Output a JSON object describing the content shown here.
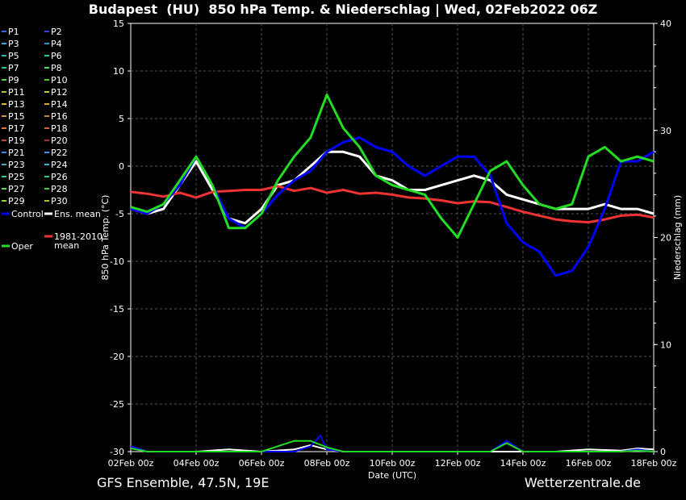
{
  "title": "Budapest  (HU)  850 hPa Temp. & Niederschlag | Wed, 02Feb2022 06Z",
  "footer_left": "GFS Ensemble, 47.5N, 19E",
  "footer_right": "Wetterzentrale.de",
  "chart_data": {
    "type": "line",
    "title": "Budapest  (HU)  850 hPa Temp. & Niederschlag | Wed, 02Feb2022 06Z",
    "xlabel": "Date (UTC)",
    "ylabel": "850 hPa Temp. (°C)",
    "y2label": "Niederschlag (mm)",
    "ylim": [
      -30,
      15
    ],
    "y2lim": [
      0,
      40
    ],
    "yticks": [
      "15",
      "10",
      "5",
      "0",
      "-5",
      "-10",
      "-15",
      "-20",
      "-25",
      "-30"
    ],
    "y2ticks": [
      "40",
      "30",
      "20",
      "10",
      "0"
    ],
    "xlim_days": [
      0,
      16
    ],
    "xticks": [
      "02Feb 00z",
      "04Feb 00z",
      "06Feb 00z",
      "08Feb 00z",
      "10Feb 00z",
      "12Feb 00z",
      "14Feb 00z",
      "16Feb 00z",
      "18Feb 00z"
    ],
    "grid": true,
    "legend_position": "left outside",
    "legend": [
      {
        "name": "P1",
        "color": "#3366ff"
      },
      {
        "name": "P2",
        "color": "#3344dd"
      },
      {
        "name": "P3",
        "color": "#33aadd"
      },
      {
        "name": "P4",
        "color": "#2299cc"
      },
      {
        "name": "P5",
        "color": "#22bbbb"
      },
      {
        "name": "P6",
        "color": "#22cc99"
      },
      {
        "name": "P7",
        "color": "#22cc88"
      },
      {
        "name": "P8",
        "color": "#44dd66"
      },
      {
        "name": "P9",
        "color": "#44dd44"
      },
      {
        "name": "P10",
        "color": "#55cc22"
      },
      {
        "name": "P11",
        "color": "#aacc22"
      },
      {
        "name": "P12",
        "color": "#cccc22"
      },
      {
        "name": "P13",
        "color": "#ddbb22"
      },
      {
        "name": "P14",
        "color": "#ddaa22"
      },
      {
        "name": "P15",
        "color": "#dd9933"
      },
      {
        "name": "P16",
        "color": "#cc8833"
      },
      {
        "name": "P17",
        "color": "#dd7733"
      },
      {
        "name": "P18",
        "color": "#cc6633"
      },
      {
        "name": "P19",
        "color": "#cc4433"
      },
      {
        "name": "P20",
        "color": "#aa3333"
      },
      {
        "name": "P21",
        "color": "#3388ff"
      },
      {
        "name": "P22",
        "color": "#3399ee"
      },
      {
        "name": "P23",
        "color": "#44aacc"
      },
      {
        "name": "P24",
        "color": "#33bbcc"
      },
      {
        "name": "P25",
        "color": "#33cc99"
      },
      {
        "name": "P26",
        "color": "#33cc77"
      },
      {
        "name": "P27",
        "color": "#55dd55"
      },
      {
        "name": "P28",
        "color": "#44cc44"
      },
      {
        "name": "P29",
        "color": "#88dd22"
      },
      {
        "name": "P30",
        "color": "#bbbb22"
      },
      {
        "name": "Control",
        "color": "#0000ff"
      },
      {
        "name": "Ens. mean",
        "color": "#ffffff"
      },
      {
        "name": "1981-2010\nmean",
        "color": "#ee3333"
      },
      {
        "name": "Oper",
        "color": "#22dd22"
      }
    ],
    "series": [
      {
        "name": "Ens. mean",
        "color": "#ffffff",
        "width": 3,
        "x": [
          0,
          0.5,
          1,
          1.5,
          2,
          2.5,
          3,
          3.5,
          4,
          4.5,
          5,
          5.5,
          6,
          6.5,
          7,
          7.5,
          8,
          8.5,
          9,
          9.5,
          10,
          10.5,
          11,
          11.5,
          12,
          12.5,
          13,
          13.5,
          14,
          14.5,
          15,
          15.5,
          16
        ],
        "y": [
          -4.5,
          -5,
          -4.5,
          -2,
          0.5,
          -2.5,
          -5.5,
          -6,
          -4.5,
          -2,
          -1.5,
          0,
          1.5,
          1.5,
          1,
          -1,
          -1.5,
          -2.5,
          -2.5,
          -2,
          -1.5,
          -1,
          -1.5,
          -3,
          -3.5,
          -4,
          -4.5,
          -4.5,
          -4.5,
          -4,
          -4.5,
          -4.5,
          -5
        ]
      },
      {
        "name": "1981-2010 mean",
        "color": "#ee3333",
        "width": 3,
        "x": [
          0,
          0.5,
          1,
          1.5,
          2,
          2.5,
          3,
          3.5,
          4,
          4.5,
          5,
          5.5,
          6,
          6.5,
          7,
          7.5,
          8,
          8.5,
          9,
          9.5,
          10,
          10.5,
          11,
          11.5,
          12,
          12.5,
          13,
          13.5,
          14,
          14.5,
          15,
          15.5,
          16
        ],
        "y": [
          -2.7,
          -2.9,
          -3.2,
          -2.8,
          -3.3,
          -2.7,
          -2.6,
          -2.5,
          -2.5,
          -2.1,
          -2.6,
          -2.3,
          -2.8,
          -2.5,
          -2.9,
          -2.8,
          -3,
          -3.3,
          -3.4,
          -3.6,
          -3.9,
          -3.7,
          -3.8,
          -4.3,
          -4.8,
          -5.2,
          -5.6,
          -5.8,
          -5.9,
          -5.6,
          -5.2,
          -5.1,
          -5.4
        ]
      },
      {
        "name": "Control",
        "color": "#0000ff",
        "width": 3,
        "x": [
          0,
          0.5,
          1,
          1.5,
          2,
          2.5,
          3,
          3.5,
          4,
          4.5,
          5,
          5.5,
          6,
          6.5,
          7,
          7.5,
          8,
          8.5,
          9,
          9.5,
          10,
          10.5,
          11,
          11.5,
          12,
          12.5,
          13,
          13.5,
          14,
          14.5,
          15,
          15.5,
          16
        ],
        "y": [
          -4.5,
          -5,
          -4,
          -2,
          1,
          -2,
          -5.5,
          -6.5,
          -5,
          -3,
          -1.5,
          -0.5,
          1.5,
          2.5,
          3,
          2,
          1.5,
          0,
          -1,
          0,
          1,
          1,
          -1,
          -6,
          -8,
          -9,
          -11.5,
          -11,
          -8.5,
          -4.5,
          0.5,
          0.5,
          1.5
        ]
      },
      {
        "name": "Oper",
        "color": "#22dd22",
        "width": 3,
        "x": [
          0,
          0.5,
          1,
          1.5,
          2,
          2.5,
          3,
          3.5,
          4,
          4.5,
          5,
          5.5,
          6,
          6.5,
          7,
          7.5,
          8,
          8.5,
          9,
          9.5,
          10,
          10.5,
          11,
          11.5,
          12,
          12.5,
          13,
          13.5,
          14,
          14.5,
          15,
          15.5,
          16
        ],
        "y": [
          -4.3,
          -4.8,
          -4,
          -1.5,
          1,
          -2,
          -6.5,
          -6.5,
          -5,
          -1.5,
          1,
          3,
          7.5,
          4,
          2,
          -1,
          -2,
          -2.5,
          -3,
          -5.5,
          -7.5,
          -4,
          -0.5,
          0.5,
          -2,
          -4,
          -4.5,
          -4,
          1,
          2,
          0.5,
          1,
          0.5
        ]
      }
    ],
    "precip_series": [
      {
        "name": "Ens. mean",
        "color": "#ffffff",
        "x": [
          0,
          0.5,
          1,
          2,
          3,
          4,
          5,
          5.5,
          6,
          6.5,
          7,
          8,
          9,
          10,
          11,
          12,
          12.5,
          13,
          14,
          15,
          15.5,
          16
        ],
        "y": [
          0.5,
          0,
          0,
          0,
          0.2,
          0,
          0.2,
          0.6,
          0.2,
          0,
          0,
          0,
          0,
          0,
          0,
          0,
          0,
          0,
          0.2,
          0.1,
          0.3,
          0.2
        ]
      },
      {
        "name": "Control",
        "color": "#0000ff",
        "x": [
          0,
          0.5,
          1,
          2,
          3,
          4,
          5,
          5.5,
          5.8,
          6,
          6.5,
          7,
          8,
          9,
          10,
          11,
          11.5,
          12,
          12.5,
          13,
          14,
          15,
          15.5,
          16
        ],
        "y": [
          0.5,
          0,
          0,
          0,
          0,
          0,
          0,
          0.5,
          1.5,
          0.2,
          0,
          0,
          0,
          0,
          0,
          0,
          1,
          0,
          0,
          0,
          0,
          0,
          0.2,
          0
        ]
      },
      {
        "name": "Oper",
        "color": "#22dd22",
        "x": [
          0,
          0.5,
          1,
          2,
          3,
          4,
          5,
          5.5,
          6,
          6.5,
          7,
          8,
          9,
          10,
          11,
          11.5,
          12,
          13,
          14,
          15,
          15.5,
          16
        ],
        "y": [
          0.3,
          0,
          0,
          0,
          0,
          0,
          1,
          1,
          0.4,
          0,
          0,
          0,
          0,
          0,
          0,
          0.8,
          0,
          0,
          0,
          0,
          0.1,
          0
        ]
      }
    ]
  }
}
